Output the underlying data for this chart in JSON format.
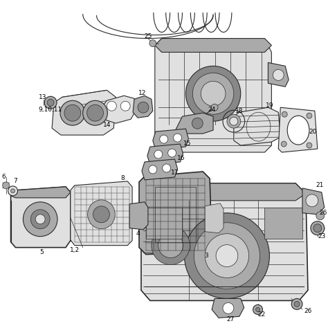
{
  "bg_color": "#ffffff",
  "fig_width": 4.74,
  "fig_height": 4.74,
  "dpi": 100,
  "line_color": "#2a2a2a",
  "label_color": "#000000",
  "label_fontsize": 6.5,
  "gray_fill": "#c8c8c8",
  "light_gray": "#e0e0e0",
  "mid_gray": "#aaaaaa",
  "dark_gray": "#888888"
}
